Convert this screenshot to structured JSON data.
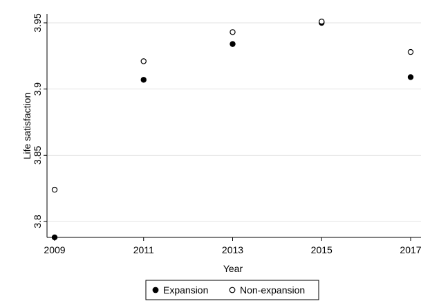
{
  "chart_data": {
    "type": "scatter",
    "title": "",
    "xlabel": "Year",
    "ylabel": "Life satisfaction",
    "x": [
      2009,
      2011,
      2013,
      2015,
      2017
    ],
    "x_ticks": [
      "2009",
      "2011",
      "2013",
      "2015",
      "2017"
    ],
    "y_ticks": [
      "3.8",
      "3.85",
      "3.9",
      "3.95"
    ],
    "xlim": [
      2009,
      2017
    ],
    "ylim": [
      3.79,
      3.96
    ],
    "grid": "horizontal",
    "legend": "bottom",
    "series": [
      {
        "name": "Expansion",
        "marker": "filled-circle",
        "color": "#000000",
        "values": [
          3.788,
          3.907,
          3.934,
          3.95,
          3.909
        ]
      },
      {
        "name": "Non-expansion",
        "marker": "hollow-circle",
        "color": "#000000",
        "values": [
          3.824,
          3.921,
          3.943,
          3.951,
          3.928
        ]
      }
    ]
  }
}
